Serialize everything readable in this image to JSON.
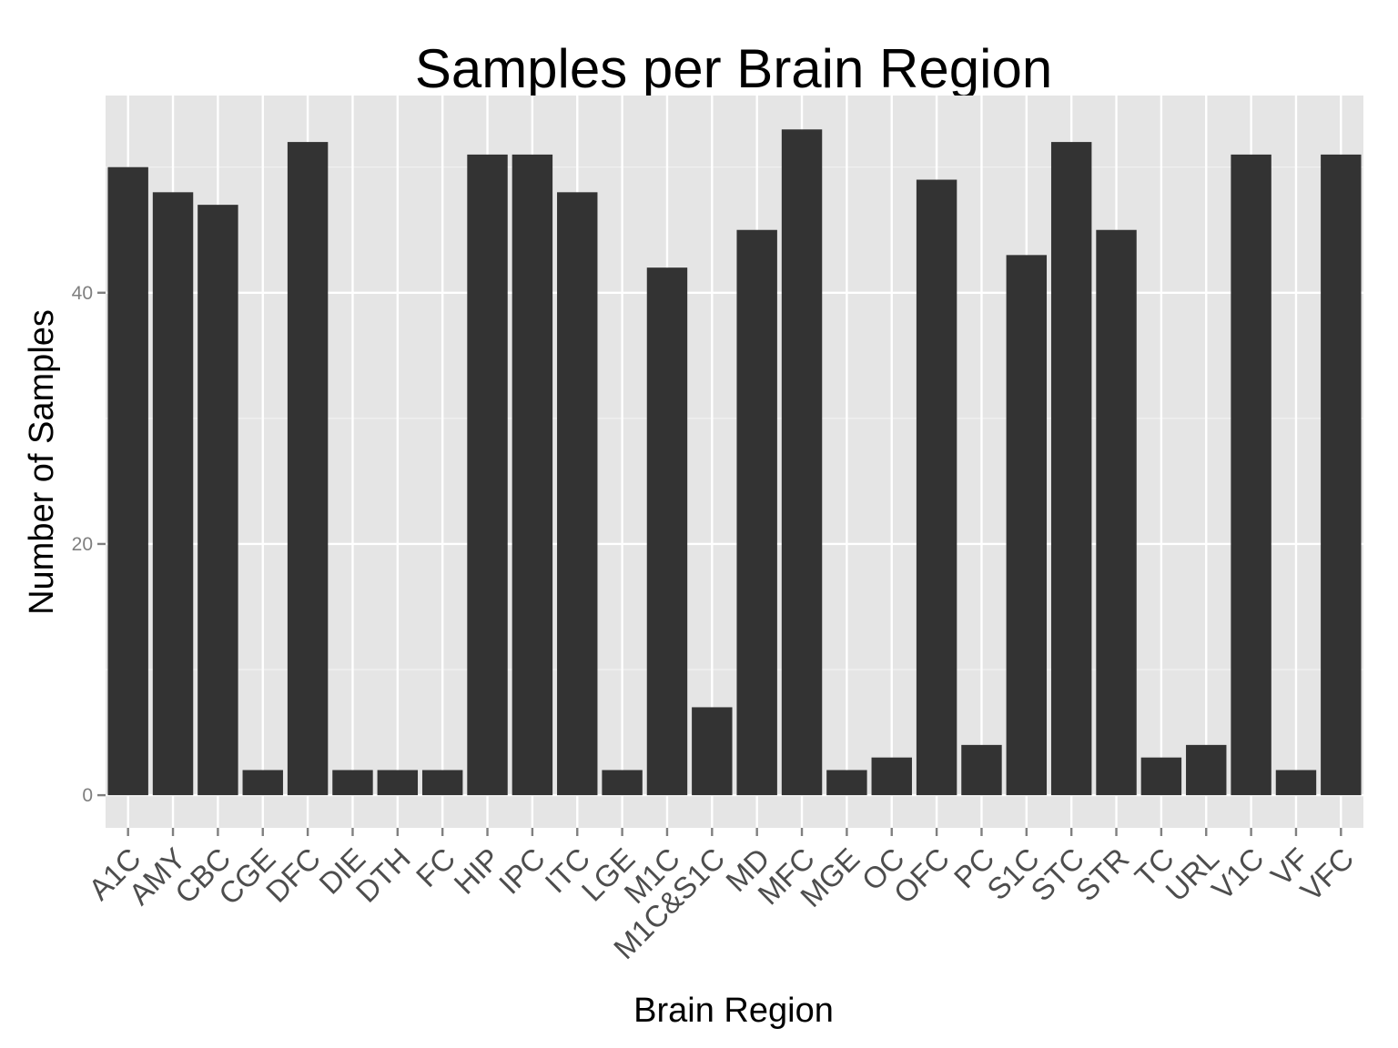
{
  "chart_data": {
    "type": "bar",
    "title": "Samples per Brain Region",
    "xlabel": "Brain Region",
    "ylabel": "Number of Samples",
    "categories": [
      "A1C",
      "AMY",
      "CBC",
      "CGE",
      "DFC",
      "DIE",
      "DTH",
      "FC",
      "HIP",
      "IPC",
      "ITC",
      "LGE",
      "M1C",
      "M1C&S1C",
      "MD",
      "MFC",
      "MGE",
      "OC",
      "OFC",
      "PC",
      "S1C",
      "STC",
      "STR",
      "TC",
      "URL",
      "V1C",
      "VF",
      "VFC"
    ],
    "values": [
      50,
      48,
      47,
      2,
      52,
      2,
      2,
      2,
      51,
      51,
      48,
      2,
      42,
      7,
      45,
      53,
      2,
      3,
      49,
      4,
      43,
      52,
      45,
      3,
      4,
      51,
      2,
      51
    ],
    "yticks": [
      0,
      20,
      40
    ],
    "ylim": [
      -2.6,
      55.7
    ],
    "grid": true,
    "colors": {
      "panel": "#e5e5e5",
      "bar": "#333333"
    }
  }
}
